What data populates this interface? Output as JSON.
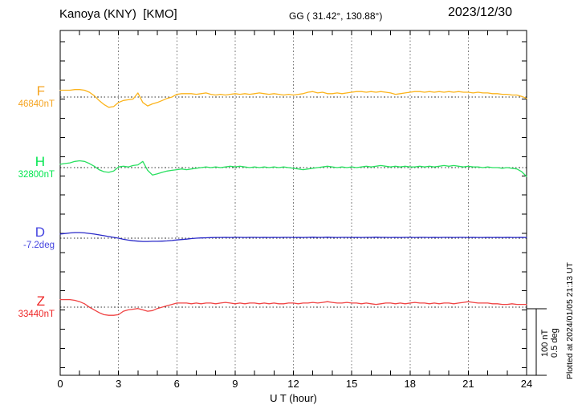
{
  "header": {
    "station_title": "Kanoya (KNY)  [KMO]",
    "coordinates": "GG ( 31.42°, 130.88°)",
    "date": "2023/12/30"
  },
  "annotations": {
    "plotted_at": "Plotted at 2024/01/05 21:13 UT"
  },
  "chart_data": {
    "type": "line",
    "title": "Kanoya (KNY) [KMO] magnetogram 2023/12/30",
    "xlabel": "U T (hour)",
    "ylabel": "",
    "x_range": [
      0,
      24
    ],
    "x_ticks": [
      0,
      3,
      6,
      9,
      12,
      15,
      18,
      21,
      24
    ],
    "grid_hours": [
      3,
      6,
      9,
      12,
      15,
      18,
      21
    ],
    "grid": "dotted vertical lines every 3 h; dotted horizontal baseline per channel",
    "sample_interval_hours": 0.25,
    "scale_bar": {
      "nT_label": "100 nT",
      "deg_label": "0.5 deg"
    },
    "series": [
      {
        "name": "F",
        "value_label": "46840nT",
        "baseline_value": 46840,
        "unit": "nT",
        "label_color": "#f5a420",
        "trace_color": "#fcb41c",
        "deviations": [
          10,
          10,
          10,
          11,
          11,
          10,
          7,
          2,
          -5,
          -11,
          -15,
          -14,
          -8,
          -5,
          -4,
          -3,
          6,
          -8,
          -13,
          -10,
          -8,
          -5,
          -2,
          0,
          4,
          5,
          5,
          5,
          4,
          5,
          6,
          4,
          3,
          4,
          3,
          4,
          5,
          4,
          5,
          4,
          5,
          6,
          5,
          4,
          5,
          4,
          3,
          4,
          3,
          4,
          5,
          7,
          8,
          6,
          7,
          5,
          5,
          6,
          5,
          6,
          7,
          8,
          8,
          7,
          8,
          7,
          8,
          7,
          6,
          4,
          5,
          6,
          7,
          8,
          8,
          7,
          8,
          7,
          8,
          7,
          8,
          7,
          8,
          7,
          7,
          6,
          7,
          6,
          6,
          5,
          5,
          4,
          4,
          3,
          3,
          1,
          -2
        ]
      },
      {
        "name": "H",
        "value_label": "32800nT",
        "baseline_value": 32800,
        "unit": "nT",
        "label_color": "#00e64e",
        "trace_color": "#29e060",
        "deviations": [
          5,
          6,
          7,
          9,
          10,
          9,
          6,
          2,
          -3,
          -6,
          -7,
          -5,
          1,
          2,
          1,
          3,
          4,
          9,
          -4,
          -11,
          -9,
          -7,
          -5,
          -4,
          -3,
          -2,
          -3,
          -2,
          -1,
          0,
          1,
          0,
          1,
          0,
          1,
          2,
          1,
          2,
          1,
          0,
          1,
          0,
          1,
          0,
          1,
          0,
          1,
          0,
          -1,
          -2,
          -3,
          -2,
          -1,
          0,
          1,
          2,
          1,
          0,
          1,
          0,
          1,
          0,
          1,
          2,
          1,
          2,
          3,
          2,
          1,
          2,
          1,
          2,
          1,
          1,
          2,
          1,
          2,
          1,
          2,
          3,
          2,
          3,
          2,
          1,
          2,
          1,
          1,
          0,
          1,
          0,
          0,
          -1,
          0,
          -1,
          -2,
          -6,
          -13
        ]
      },
      {
        "name": "D",
        "value_label": "-7.2deg",
        "baseline_value": -7.2,
        "unit": "deg",
        "label_color": "#4444e0",
        "trace_color": "#2929c8",
        "deviations": [
          0.03,
          0.034,
          0.038,
          0.041,
          0.041,
          0.039,
          0.035,
          0.03,
          0.024,
          0.018,
          0.012,
          0.006,
          0.0,
          -0.008,
          -0.014,
          -0.019,
          -0.022,
          -0.024,
          -0.024,
          -0.023,
          -0.023,
          -0.022,
          -0.02,
          -0.017,
          -0.013,
          -0.01,
          -0.007,
          -0.003,
          0.0,
          0.002,
          0.003,
          0.004,
          0.005,
          0.005,
          0.006,
          0.005,
          0.006,
          0.006,
          0.005,
          0.006,
          0.006,
          0.005,
          0.006,
          0.005,
          0.006,
          0.005,
          0.006,
          0.006,
          0.005,
          0.006,
          0.005,
          0.006,
          0.007,
          0.006,
          0.006,
          0.007,
          0.006,
          0.005,
          0.006,
          0.006,
          0.005,
          0.006,
          0.005,
          0.006,
          0.006,
          0.007,
          0.006,
          0.006,
          0.005,
          0.006,
          0.005,
          0.006,
          0.006,
          0.005,
          0.006,
          0.006,
          0.005,
          0.006,
          0.005,
          0.006,
          0.006,
          0.005,
          0.006,
          0.006,
          0.005,
          0.006,
          0.005,
          0.005,
          0.006,
          0.005,
          0.006,
          0.005,
          0.006,
          0.005,
          0.005,
          0.006,
          0.005
        ]
      },
      {
        "name": "Z",
        "value_label": "33440nT",
        "baseline_value": 33440,
        "unit": "nT",
        "label_color": "#ee2525",
        "trace_color": "#f04343",
        "deviations": [
          11,
          11,
          11,
          10,
          8,
          5,
          0,
          -4,
          -8,
          -11,
          -12,
          -12,
          -11,
          -6,
          -4,
          -3,
          -2,
          -4,
          -6,
          -5,
          -2,
          0,
          2,
          4,
          6,
          6,
          6,
          5,
          6,
          5,
          6,
          6,
          5,
          6,
          7,
          6,
          5,
          6,
          5,
          6,
          6,
          5,
          6,
          5,
          6,
          5,
          5,
          6,
          6,
          5,
          6,
          6,
          7,
          6,
          7,
          8,
          7,
          6,
          6,
          7,
          6,
          6,
          5,
          6,
          5,
          4,
          5,
          6,
          6,
          5,
          6,
          5,
          6,
          7,
          6,
          6,
          5,
          6,
          5,
          6,
          6,
          5,
          6,
          7,
          8,
          7,
          6,
          6,
          6,
          5,
          5,
          4,
          4,
          5,
          4,
          4,
          4
        ]
      }
    ]
  }
}
